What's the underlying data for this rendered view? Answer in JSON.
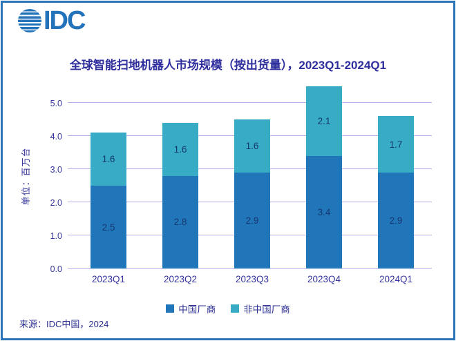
{
  "logo": {
    "text": "IDC",
    "icon": "globe-icon"
  },
  "title": "全球智能扫地机器人市场规模（按出货量），2023Q1-2024Q1",
  "chart_data": {
    "type": "bar",
    "stacked": true,
    "categories": [
      "2023Q1",
      "2023Q2",
      "2023Q3",
      "2023Q4",
      "2024Q1"
    ],
    "series": [
      {
        "name": "中国厂商",
        "color": "#2176ba",
        "values": [
          2.5,
          2.8,
          2.9,
          3.4,
          2.9
        ]
      },
      {
        "name": "非中国厂商",
        "color": "#38abc5",
        "values": [
          1.6,
          1.6,
          1.6,
          2.1,
          1.7
        ]
      }
    ],
    "totals": [
      4.1,
      4.4,
      4.5,
      5.5,
      4.6
    ],
    "ylabel": "单位：百万台",
    "xlabel": "",
    "yticks": [
      "0.0",
      "1.0",
      "2.0",
      "3.0",
      "4.0",
      "5.0"
    ],
    "ylim": [
      0,
      5.6
    ],
    "grid": true,
    "legend_position": "bottom"
  },
  "source": "来源：IDC中国，2024",
  "colors": {
    "frame_border": "#2c73b8",
    "logo_blue": "#2273ba",
    "title_text": "#2e2f9d",
    "axis_text": "#34349c",
    "grid_line": "#b5afe7",
    "data_label": "#16386f",
    "legend_text": "#2b2e92"
  }
}
